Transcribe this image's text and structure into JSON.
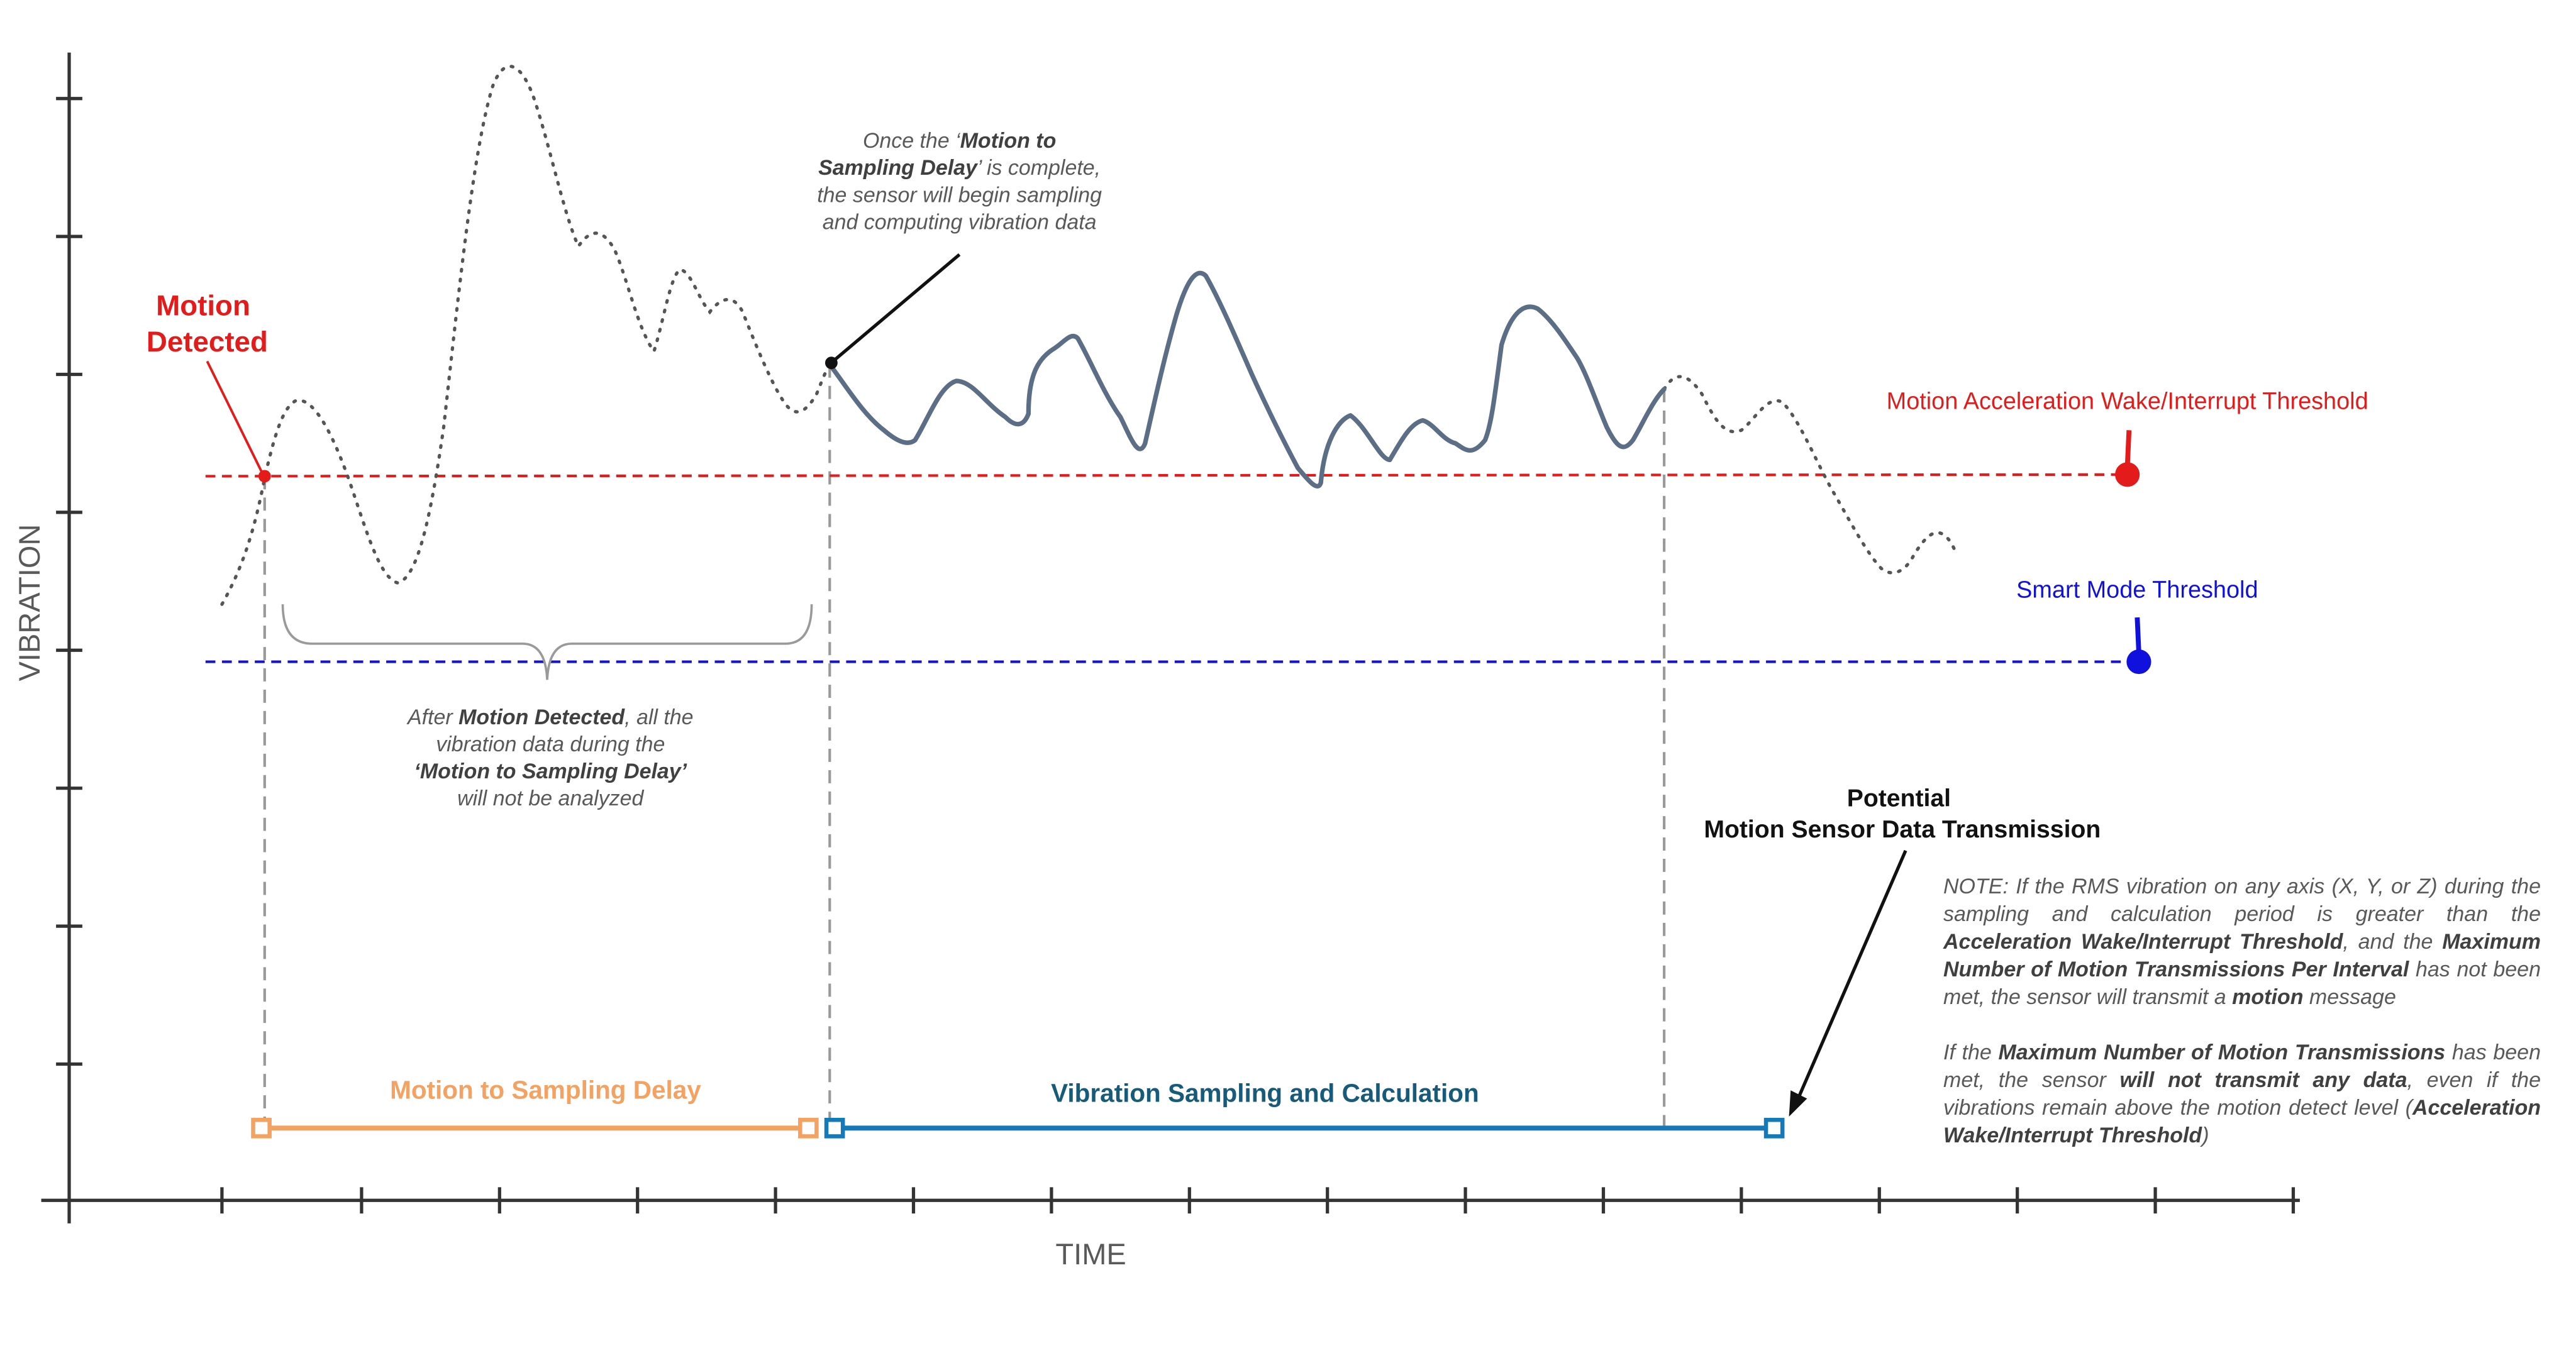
{
  "axes": {
    "y_label": "VIBRATION",
    "x_label": "TIME"
  },
  "labels": {
    "motion_detected": [
      "Motion",
      "Detected"
    ],
    "wake_threshold": "Motion Acceleration Wake/Interrupt Threshold",
    "smart_threshold": "Smart Mode Threshold",
    "delay_bar": "Motion to Sampling Delay",
    "sampling_bar": "Vibration Sampling and Calculation",
    "transmission": [
      "Potential",
      "Motion Sensor Data Transmission"
    ]
  },
  "annotations": {
    "sampling_start": [
      [
        {
          "t": "Once the ‘"
        },
        {
          "t": "Motion to",
          "b": true
        }
      ],
      [
        {
          "t": "Sampling Delay",
          "b": true
        },
        {
          "t": "’ is complete,"
        }
      ],
      [
        {
          "t": "the sensor will begin sampling"
        }
      ],
      [
        {
          "t": "and computing vibration data"
        }
      ]
    ],
    "delay_info": [
      [
        {
          "t": "After "
        },
        {
          "t": "Motion Detected",
          "b": true
        },
        {
          "t": ", all the"
        }
      ],
      [
        {
          "t": "vibration data during the"
        }
      ],
      [
        {
          "t": "‘Motion to Sampling Delay’",
          "b": true
        }
      ],
      [
        {
          "t": "will not be analyzed"
        }
      ]
    ]
  },
  "note": [
    [
      {
        "t": "NOTE: If the RMS vibration on any axis (X, Y, or Z) during the sampling and calculation period is greater than the "
      },
      {
        "t": "Acceleration Wake/Interrupt Threshold",
        "b": true
      },
      {
        "t": ", and the "
      },
      {
        "t": "Maximum Number of Motion Transmissions Per Interval",
        "b": true
      },
      {
        "t": " has not been met, the sensor will transmit a "
      },
      {
        "t": "motion",
        "b": true
      },
      {
        "t": " message"
      }
    ],
    [
      {
        "t": "If the "
      },
      {
        "t": "Maximum Number of Motion Transmissions",
        "b": true
      },
      {
        "t": " has been met, the sensor "
      },
      {
        "t": "will not transmit any data",
        "b": true
      },
      {
        "t": ", even if the vibrations remain above the motion detect level ("
      },
      {
        "t": "Acceleration Wake/Interrupt Threshold",
        "b": true
      },
      {
        "t": ")"
      }
    ]
  ],
  "colors": {
    "axis": "#333333",
    "dotted_signal": "#555555",
    "sampled_signal": "#5b6e85",
    "wake_threshold": "#e31b1b",
    "smart_threshold": "#1111dd",
    "delay": "#f4a261",
    "sampling": "#1479b8",
    "sampling_label": "#185a7a",
    "guide": "#999999",
    "annotation": "#595959"
  }
}
